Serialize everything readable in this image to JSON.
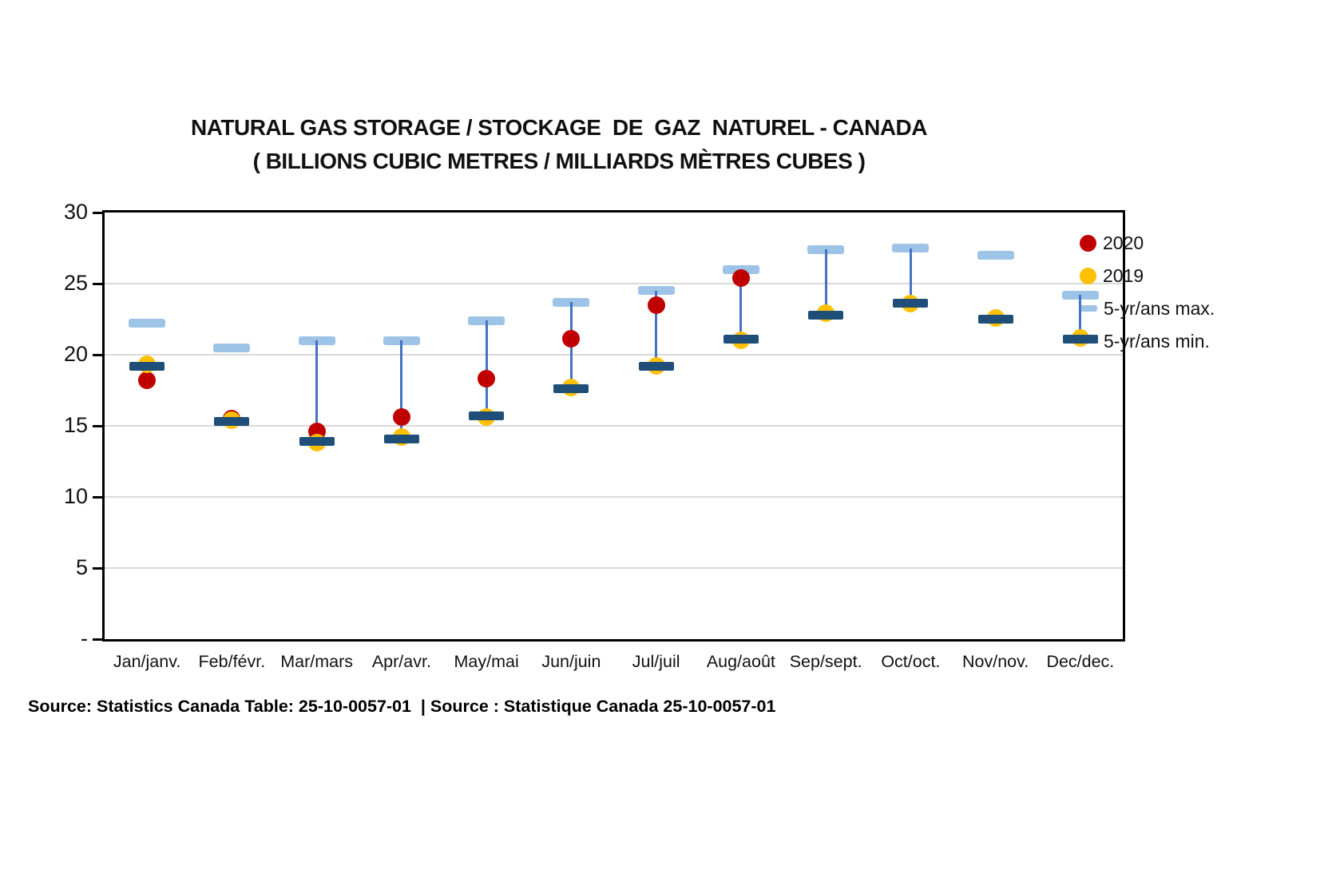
{
  "title": {
    "line1": "NATURAL GAS STORAGE / STOCKAGE  DE  GAZ  NATUREL - CANADA",
    "line2": "( BILLIONS CUBIC METRES / MILLIARDS MÈTRES CUBES )"
  },
  "source": "Source: Statistics Canada Table: 25-10-0057-01  | Source : Statistique Canada 25-10-0057-01",
  "chart_data": {
    "type": "range-dot",
    "title": "NATURAL GAS STORAGE / STOCKAGE DE GAZ NATUREL - CANADA ( BILLIONS CUBIC METRES / MILLIARDS MÈTRES CUBES )",
    "categories": [
      "Jan/janv.",
      "Feb/févr.",
      "Mar/mars",
      "Apr/avr.",
      "May/mai",
      "Jun/juin",
      "Jul/juil",
      "Aug/août",
      "Sep/sept.",
      "Oct/oct.",
      "Nov/nov.",
      "Dec/dec."
    ],
    "series": [
      {
        "name": "2020",
        "marker": "circle",
        "color": "#C00000",
        "values": [
          18.2,
          15.5,
          14.6,
          15.6,
          18.3,
          21.1,
          23.5,
          25.4,
          null,
          null,
          null,
          null
        ]
      },
      {
        "name": "2019",
        "marker": "circle",
        "color": "#FFC000",
        "values": [
          19.3,
          15.4,
          13.8,
          14.2,
          15.6,
          17.7,
          19.2,
          21.0,
          22.9,
          23.6,
          22.6,
          21.2
        ]
      },
      {
        "name": "5-yr/ans max.",
        "marker": "dash",
        "color": "#9DC3E6",
        "values": [
          22.2,
          20.5,
          21.0,
          21.0,
          22.4,
          23.7,
          24.5,
          26.0,
          27.4,
          27.5,
          27.0,
          24.2
        ]
      },
      {
        "name": "5-yr/ans min.",
        "marker": "dash",
        "color": "#1F4E79",
        "values": [
          19.2,
          15.3,
          13.9,
          14.1,
          15.7,
          17.6,
          19.2,
          21.1,
          22.8,
          23.6,
          22.5,
          21.1
        ]
      }
    ],
    "connectors": [
      false,
      false,
      true,
      true,
      true,
      true,
      true,
      true,
      true,
      true,
      false,
      true
    ],
    "connector_color": "#4472C4",
    "ylim": [
      0,
      30
    ],
    "ytick_step": 5,
    "ytick_labels": [
      "30",
      "25",
      "20",
      "15",
      "10",
      "5",
      "-"
    ],
    "grid": true,
    "gridline_color": "#D9D9D9",
    "legend_position": "right"
  }
}
